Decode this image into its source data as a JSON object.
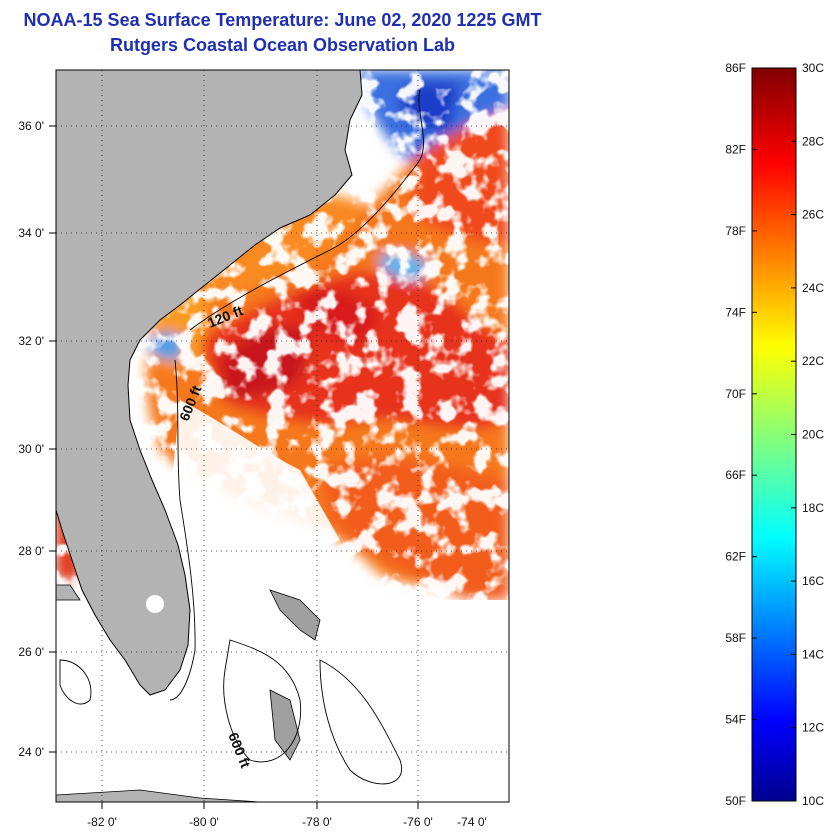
{
  "title": {
    "line1": "NOAA-15 Sea Surface Temperature:  June 02, 2020 1225 GMT",
    "line2": "Rutgers Coastal Ocean Observation Lab"
  },
  "colors": {
    "title": "#1f2fb2",
    "land": "#b3b3b3",
    "cloud": "#ffffff",
    "frame": "#000000"
  },
  "map": {
    "lon_range": [
      -83,
      -73
    ],
    "lat_range": [
      23,
      37
    ],
    "lon_ticks": [
      -82,
      -80,
      -78,
      -76,
      -74
    ],
    "lat_ticks": [
      24,
      26,
      28,
      30,
      32,
      34,
      36
    ],
    "lon_tick_labels": [
      "-82 0'",
      "-80 0'",
      "-78 0'",
      "-76 0'",
      "-74 0'"
    ],
    "lat_tick_labels": [
      "24 0'",
      "26 0'",
      "28 0'",
      "30 0'",
      "32 0'",
      "34 0'",
      "36 0'"
    ],
    "grid": "dotted",
    "contour_labels": [
      "120 ft",
      "600 ft",
      "600 ft"
    ]
  },
  "colorbar": {
    "range_c": [
      10,
      30
    ],
    "range_f": [
      50,
      86
    ],
    "f_labels": [
      "86F",
      "82F",
      "78F",
      "74F",
      "70F",
      "66F",
      "62F",
      "58F",
      "54F",
      "50F"
    ],
    "c_labels": [
      "30C",
      "28C",
      "26C",
      "24C",
      "22C",
      "20C",
      "18C",
      "16C",
      "14C",
      "12C",
      "10C"
    ],
    "colormap": "jet"
  }
}
